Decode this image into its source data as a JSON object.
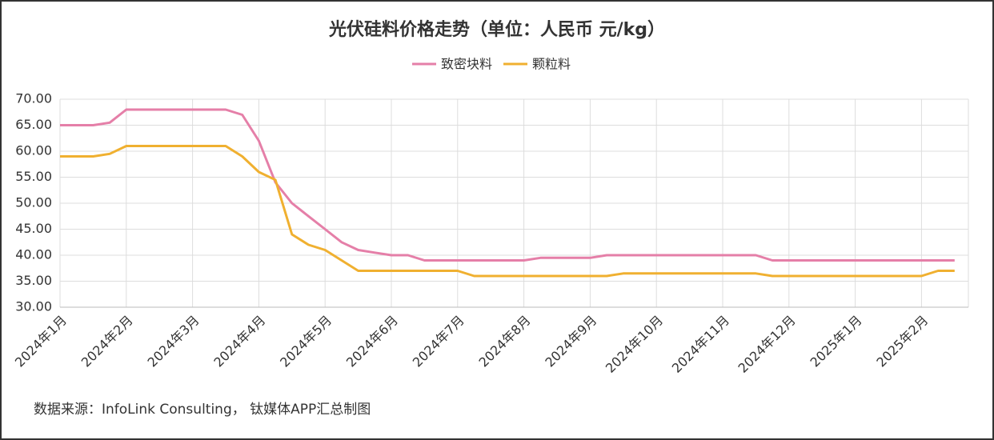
{
  "chart_data": {
    "type": "line",
    "title": "光伏硅料价格走势（单位：人民币 元/kg）",
    "source": "数据来源：InfoLink Consulting， 钛媒体APP汇总制图",
    "categories": [
      "2024年1月",
      null,
      null,
      null,
      "2024年2月",
      null,
      null,
      null,
      "2024年3月",
      null,
      null,
      null,
      "2024年4月",
      null,
      null,
      null,
      "2024年5月",
      null,
      null,
      null,
      "2024年6月",
      null,
      null,
      null,
      "2024年7月",
      null,
      null,
      null,
      "2024年8月",
      null,
      null,
      null,
      "2024年9月",
      null,
      null,
      null,
      "2024年10月",
      null,
      null,
      null,
      "2024年11月",
      null,
      null,
      null,
      "2024年12月",
      null,
      null,
      null,
      "2025年1月",
      null,
      null,
      null,
      "2025年2月",
      null,
      null
    ],
    "series": [
      {
        "name": "致密块料",
        "color": "#e57fa8",
        "values": [
          65,
          65,
          65,
          65.5,
          68,
          68,
          68,
          68,
          68,
          68,
          68,
          67,
          62,
          54,
          50,
          47.5,
          45,
          42.5,
          41,
          40.5,
          40,
          40,
          39,
          39,
          39,
          39,
          39,
          39,
          39,
          39.5,
          39.5,
          39.5,
          39.5,
          40,
          40,
          40,
          40,
          40,
          40,
          40,
          40,
          40,
          40,
          39,
          39,
          39,
          39,
          39,
          39,
          39,
          39,
          39,
          39,
          39,
          39
        ]
      },
      {
        "name": "颗粒料",
        "color": "#f0b030",
        "values": [
          59,
          59,
          59,
          59.5,
          61,
          61,
          61,
          61,
          61,
          61,
          61,
          59,
          56,
          54.5,
          44,
          42,
          41,
          39,
          37,
          37,
          37,
          37,
          37,
          37,
          37,
          36,
          36,
          36,
          36,
          36,
          36,
          36,
          36,
          36,
          36.5,
          36.5,
          36.5,
          36.5,
          36.5,
          36.5,
          36.5,
          36.5,
          36.5,
          36,
          36,
          36,
          36,
          36,
          36,
          36,
          36,
          36,
          36,
          37,
          37
        ]
      }
    ],
    "ylim": [
      30,
      70
    ],
    "yticks": [
      {
        "value": 30,
        "label": "30.00"
      },
      {
        "value": 35,
        "label": "35.00"
      },
      {
        "value": 40,
        "label": "40.00"
      },
      {
        "value": 45,
        "label": "45.00"
      },
      {
        "value": 50,
        "label": "50.00"
      },
      {
        "value": 55,
        "label": "55.00"
      },
      {
        "value": 60,
        "label": "60.00"
      },
      {
        "value": 65,
        "label": "65.00"
      },
      {
        "value": 70,
        "label": "70.00"
      }
    ],
    "grid": true,
    "legend": "top"
  }
}
